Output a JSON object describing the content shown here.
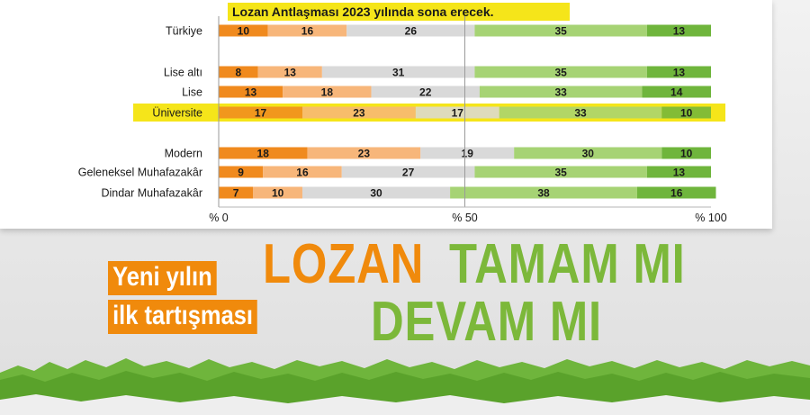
{
  "chart_data": {
    "type": "bar",
    "stacked": true,
    "orientation": "horizontal",
    "title": "Lozan Antlaşması 2023 yılında sona erecek.",
    "categories": [
      "Türkiye",
      "Lise altı",
      "Lise",
      "Üniversite",
      "Modern",
      "Geleneksel Muhafazakâr",
      "Dindar Muhafazakâr"
    ],
    "segments": [
      [
        10,
        16,
        26,
        35,
        13
      ],
      [
        8,
        13,
        31,
        35,
        13
      ],
      [
        13,
        18,
        22,
        33,
        14
      ],
      [
        17,
        23,
        17,
        33,
        10
      ],
      [
        18,
        23,
        19,
        30,
        10
      ],
      [
        9,
        16,
        27,
        35,
        13
      ],
      [
        7,
        10,
        30,
        38,
        16
      ]
    ],
    "highlighted_category": "Üniversite",
    "xlim": [
      0,
      100
    ],
    "xticks": [
      "% 0",
      "% 50",
      "% 100"
    ],
    "segment_colors": [
      "#f08a1e",
      "#f7b67a",
      "#d9d9d9",
      "#a6d374",
      "#6fb53c"
    ],
    "highlight_color": "#f5e51a",
    "grid": false
  },
  "overlay": {
    "subtitle_lines": [
      "Yeni yılın",
      "ilk tartışması"
    ],
    "headline_orange": "LOZAN",
    "headline_green_1": "TAMAM MI",
    "headline_green_2": "DEVAM MI",
    "colors": {
      "orange": "#f08a0c",
      "green": "#7cb83a"
    }
  }
}
